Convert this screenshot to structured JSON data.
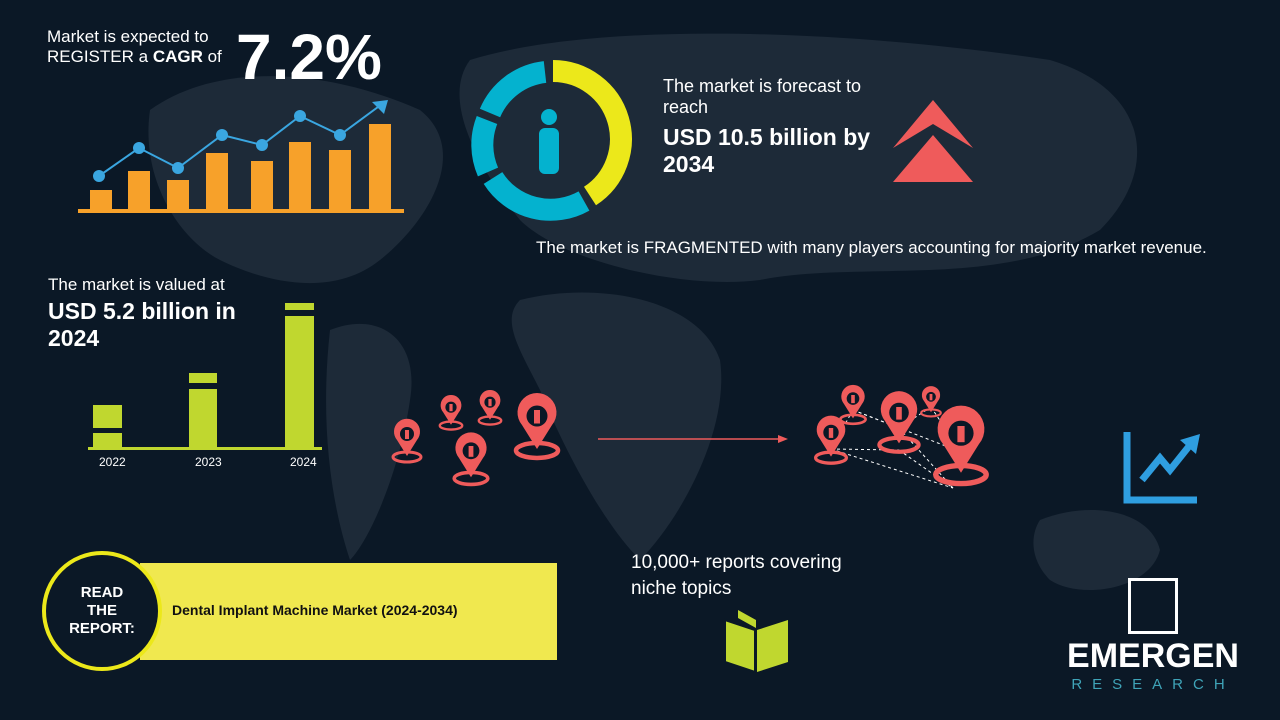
{
  "cagr": {
    "line1": "Market is expected to",
    "line2_pre": "REGISTER a ",
    "line2_bold": "CAGR",
    "line2_post": " of",
    "value": "7.2%"
  },
  "forecast": {
    "intro": "The market is forecast to reach",
    "value": "USD 10.5 billion by 2034"
  },
  "fragmented": "The market is FRAGMENTED with many players accounting for majority market revenue.",
  "valued": {
    "intro": "The market is valued at",
    "value": "USD 5.2 billion in 2024"
  },
  "year_labels": [
    "2022",
    "2023",
    "2024"
  ],
  "reports": "10,000+ reports covering niche topics",
  "read_report": {
    "label": "READ THE REPORT:",
    "title": "Dental Implant Machine Market (2024-2034)"
  },
  "logo": {
    "name": "EMERGEN",
    "sub": "RESEARCH"
  },
  "colors": {
    "background": "#0b1826",
    "orange": "#f7a12a",
    "blue": "#3aa6e0",
    "yellow": "#ece81a",
    "cyan": "#04b2cf",
    "red": "#ef5b5b",
    "green": "#c0d72f",
    "banner": "#f0e84f"
  },
  "icons": [
    "growth-chart-icon",
    "donut-person-icon",
    "double-chevron-up-icon",
    "location-pin-icon",
    "trend-up-icon",
    "open-book-icon"
  ]
}
